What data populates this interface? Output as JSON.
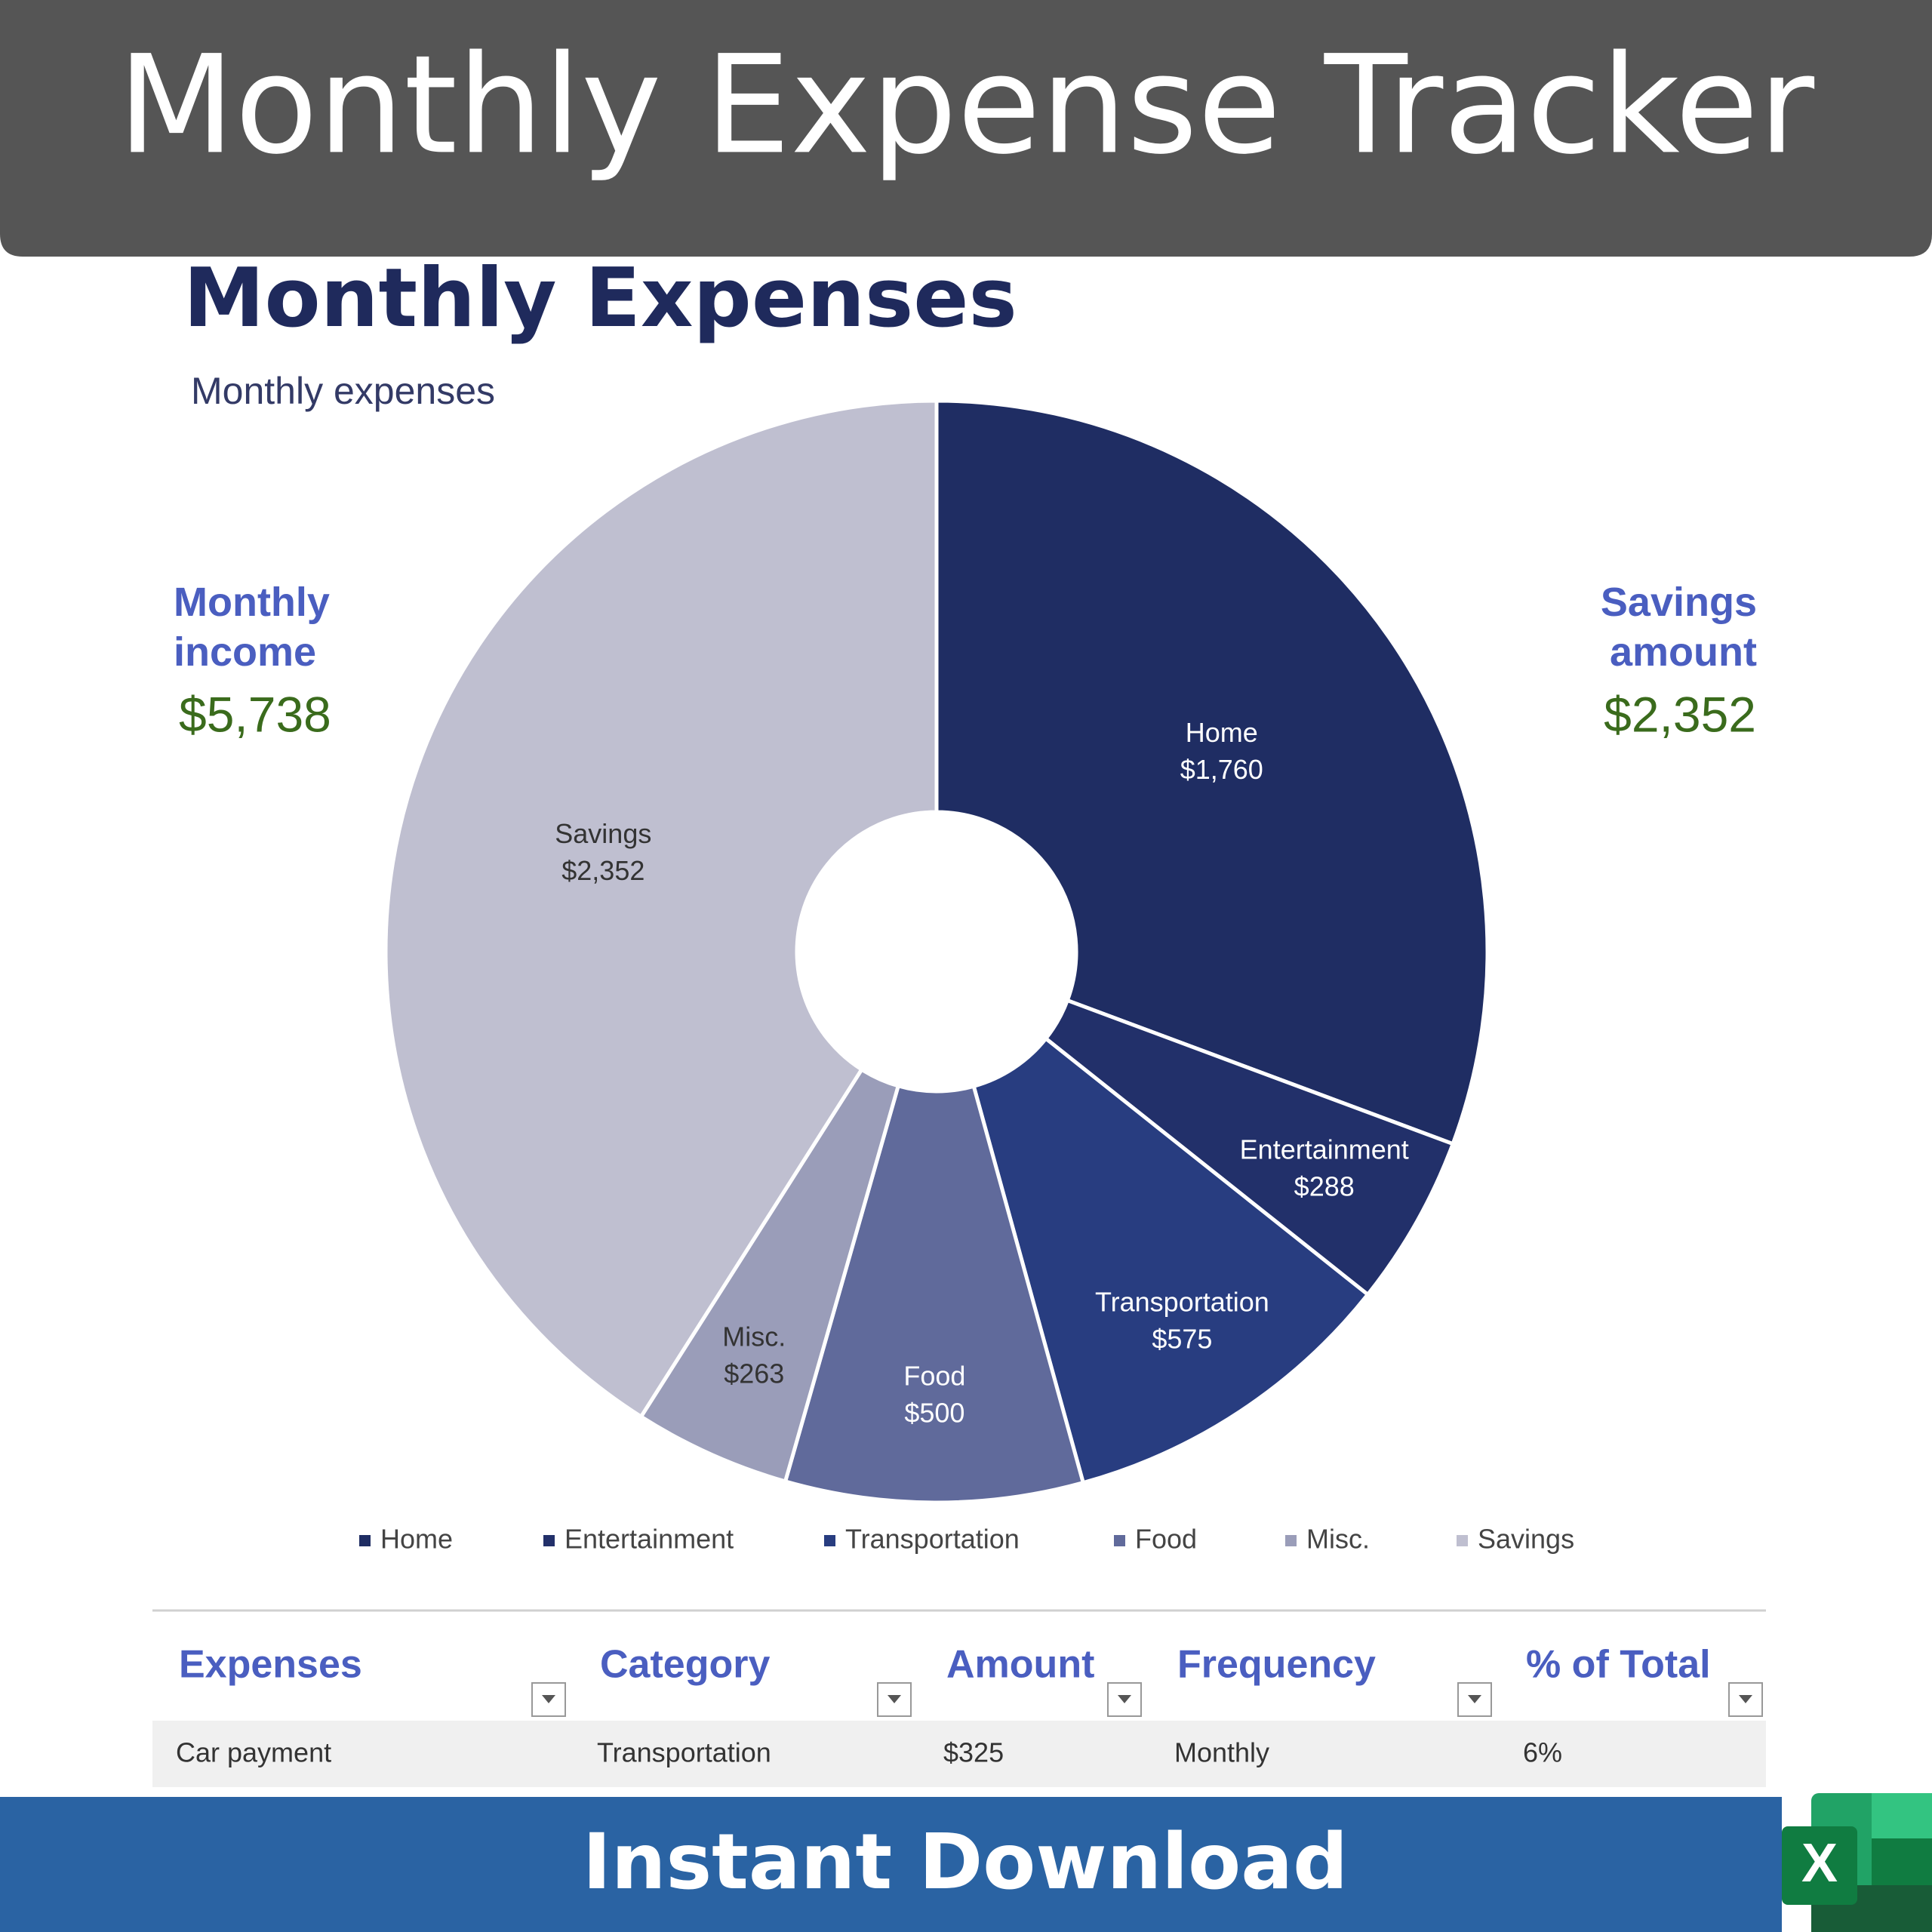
{
  "header": {
    "title": "Monthly Expense Tracker"
  },
  "stats": {
    "income": {
      "label": "Monthly income",
      "value": "$5,738"
    },
    "savings": {
      "label": "Savings amount",
      "value": "$2,352"
    }
  },
  "chart_data": {
    "type": "pie",
    "title": "Monthly Expenses",
    "subtitle": "Monthly expenses",
    "donut": true,
    "categories": [
      "Home",
      "Entertainment",
      "Transportation",
      "Food",
      "Misc.",
      "Savings"
    ],
    "values": [
      1760,
      288,
      575,
      500,
      263,
      2352
    ],
    "value_labels": [
      "$1,760",
      "$288",
      "$575",
      "$500",
      "$263",
      "$2,352"
    ],
    "colors": [
      "#1f2d63",
      "#22306a",
      "#283d80",
      "#606a9b",
      "#9a9db9",
      "#bfbfd0"
    ],
    "legend": "bottom"
  },
  "table": {
    "columns": [
      "Expenses",
      "Category",
      "Amount",
      "Frequency",
      "% of Total"
    ],
    "rows": [
      [
        "Car payment",
        "Transportation",
        "$325",
        "Monthly",
        "6%"
      ]
    ]
  },
  "footer": {
    "text": "Instant Download",
    "icon_label": "X"
  }
}
